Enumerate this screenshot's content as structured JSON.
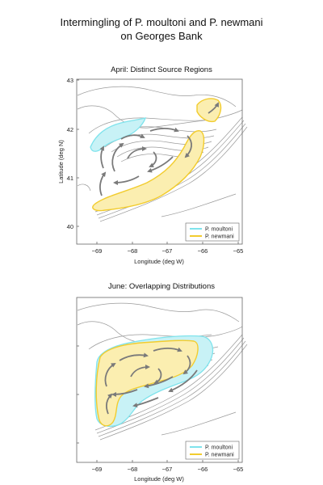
{
  "title_line1": "Intermingling of P. moultoni and P. newmani",
  "title_line2": "on Georges Bank",
  "colors": {
    "moultoni": "#7fe3ec",
    "newmani": "#f2cc2e",
    "newmani_fill": "#fbeeb0",
    "moultoni_fill": "#c8f2f6",
    "bathy": "#9a9a9a",
    "arrow": "#7a7a7a"
  },
  "panels": [
    {
      "title": "April: Distinct Source Regions",
      "xlabel": "Longitude (deg W)",
      "ylabel": "Latitude (deg N)",
      "xticks": [
        "−69",
        "−68",
        "−67",
        "−66",
        "−65"
      ],
      "yticks": [
        "43",
        "42",
        "41",
        "40"
      ],
      "legend": [
        "P. moultoni",
        "P. newmani"
      ]
    },
    {
      "title": "June: Overlapping Distributions",
      "xlabel": "Longitude (deg W)",
      "ylabel": "",
      "xticks": [
        "−69",
        "−68",
        "−67",
        "−66",
        "−65"
      ],
      "yticks": [],
      "legend": [
        "P. moultoni",
        "P. newmani"
      ]
    }
  ]
}
